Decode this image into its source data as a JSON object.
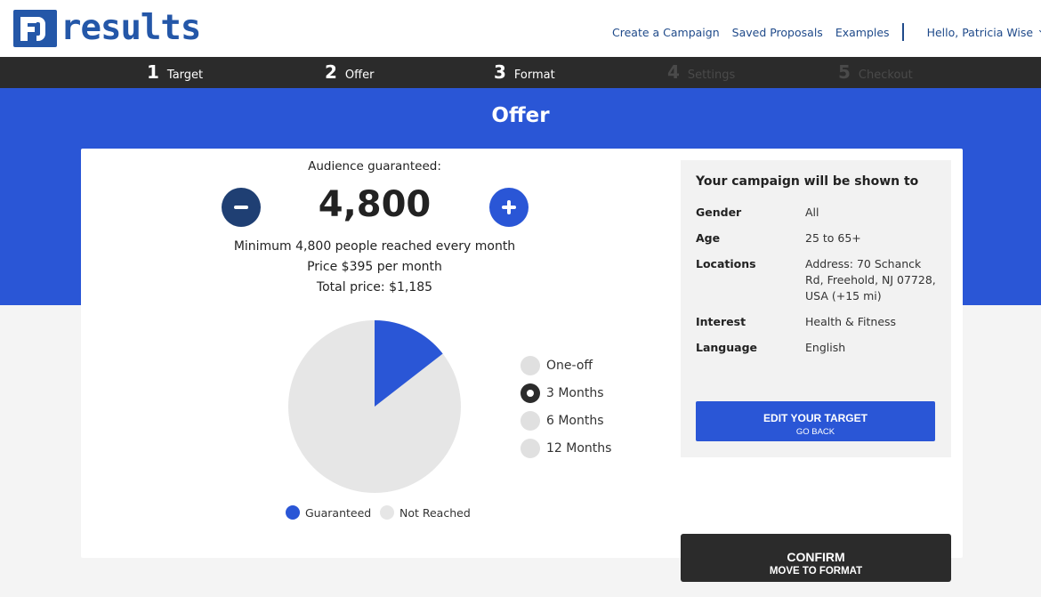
{
  "header": {
    "logo_text": "results",
    "nav": {
      "create_campaign": "Create a Campaign",
      "saved_proposals": "Saved Proposals",
      "examples": "Examples",
      "user_greeting": "Hello, Patricia Wise"
    }
  },
  "steps": [
    {
      "num": "1",
      "label": "Target",
      "state": "done"
    },
    {
      "num": "2",
      "label": "Offer",
      "state": "done"
    },
    {
      "num": "3",
      "label": "Format",
      "state": "current"
    },
    {
      "num": "4",
      "label": "Settings",
      "state": "disabled"
    },
    {
      "num": "5",
      "label": "Checkout",
      "state": "disabled"
    }
  ],
  "page_title": "Offer",
  "audience": {
    "label": "Audience guaranteed:",
    "value": "4,800",
    "minimum_text": "Minimum 4,800 people reached every month",
    "price_text": "Price $395 per month",
    "total_text": "Total price: $1,185"
  },
  "pie": {
    "guaranteed_fraction": 0.145,
    "guaranteed_color": "#2a56d6",
    "not_reached_color": "#e6e6e6",
    "legend": {
      "guaranteed": "Guaranteed",
      "not_reached": "Not Reached"
    }
  },
  "durations": {
    "options": [
      "One-off",
      "3 Months",
      "6 Months",
      "12 Months"
    ],
    "selected": "3 Months"
  },
  "target_panel": {
    "title": "Your campaign will be shown to",
    "rows": [
      {
        "key": "Gender",
        "value": "All"
      },
      {
        "key": "Age",
        "value": "25 to 65+"
      },
      {
        "key": "Locations",
        "value": "Address: 70 Schanck Rd, Freehold, NJ 07728, USA (+15 mi)"
      },
      {
        "key": "Interest",
        "value": "Health & Fitness"
      },
      {
        "key": "Language",
        "value": "English"
      }
    ],
    "edit_button": {
      "label": "EDIT YOUR TARGET",
      "sublabel": "GO BACK"
    }
  },
  "confirm_button": {
    "label": "CONFIRM",
    "sublabel": "MOVE TO FORMAT"
  },
  "colors": {
    "brand_blue": "#2a56d6",
    "dark": "#2b2b2b",
    "navy": "#1f3f73",
    "link": "#1f4a8a"
  }
}
